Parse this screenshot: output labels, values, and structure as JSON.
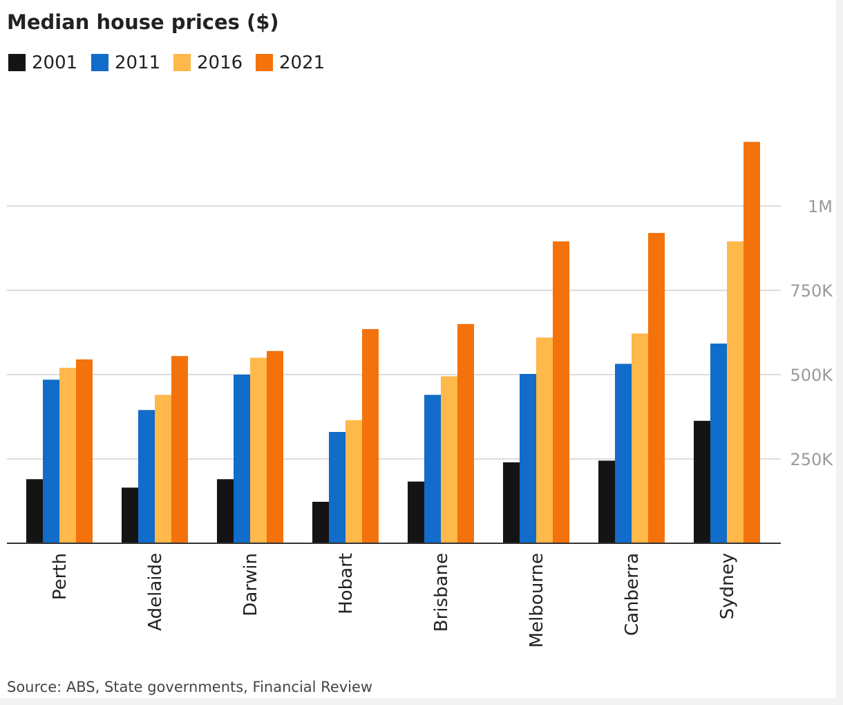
{
  "chart_data": {
    "type": "bar",
    "title": "Median house prices ($)",
    "source": "Source: ABS, State governments, Financial Review",
    "categories": [
      "Perth",
      "Adelaide",
      "Darwin",
      "Hobart",
      "Brisbane",
      "Melbourne",
      "Canberra",
      "Sydney"
    ],
    "series": [
      {
        "name": "2001",
        "color": "#141414",
        "values": [
          190000,
          165000,
          190000,
          123000,
          183000,
          240000,
          245000,
          363000
        ]
      },
      {
        "name": "2011",
        "color": "#116cca",
        "values": [
          485000,
          395000,
          500000,
          330000,
          440000,
          502000,
          532000,
          592000
        ]
      },
      {
        "name": "2016",
        "color": "#ffb84a",
        "values": [
          520000,
          440000,
          550000,
          365000,
          495000,
          610000,
          622000,
          895000
        ]
      },
      {
        "name": "2021",
        "color": "#f3720b",
        "values": [
          545000,
          555000,
          570000,
          635000,
          650000,
          895000,
          920000,
          1190000
        ]
      }
    ],
    "yaxis": {
      "min": 0,
      "max": 1190000,
      "ticks": [
        {
          "value": 250000,
          "label": "250K"
        },
        {
          "value": 500000,
          "label": "500K"
        },
        {
          "value": 750000,
          "label": "750K"
        },
        {
          "value": 1000000,
          "label": "1M"
        }
      ],
      "position": "right"
    },
    "grid": true,
    "legend_position": "top-left"
  }
}
